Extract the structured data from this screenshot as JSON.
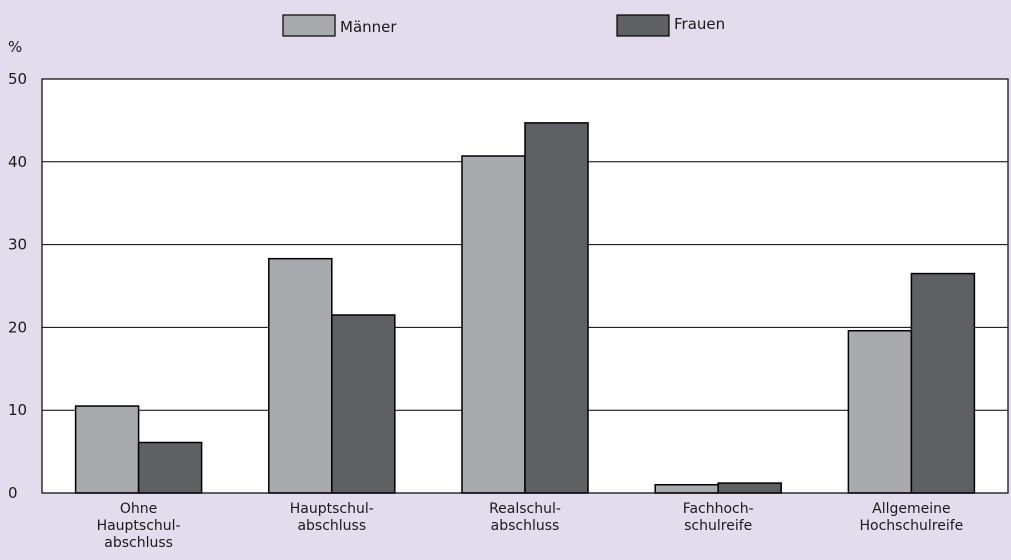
{
  "colors": {
    "background": "#e2dcec",
    "plot_background": "#ffffff",
    "maenner": "#a8aaad",
    "frauen": "#5e6064",
    "stroke": "#000000"
  },
  "chart_data": {
    "type": "bar",
    "categories": [
      [
        "Ohne",
        "Hauptschul-",
        "abschluss"
      ],
      [
        "Hauptschul-",
        "abschluss"
      ],
      [
        "Realschul-",
        "abschluss"
      ],
      [
        "Fachhoch-",
        "schulreife"
      ],
      [
        "Allgemeine",
        "Hochschulreife"
      ]
    ],
    "series": [
      {
        "name": "Männer",
        "values": [
          10.5,
          28.3,
          40.7,
          1.0,
          19.6
        ]
      },
      {
        "name": "Frauen",
        "values": [
          6.1,
          21.5,
          44.7,
          1.2,
          26.5
        ]
      }
    ],
    "ylabel": "%",
    "ylim": [
      0,
      50
    ],
    "yticks": [
      0,
      10,
      20,
      30,
      40,
      50
    ],
    "grid": true,
    "legend_position": "top"
  }
}
